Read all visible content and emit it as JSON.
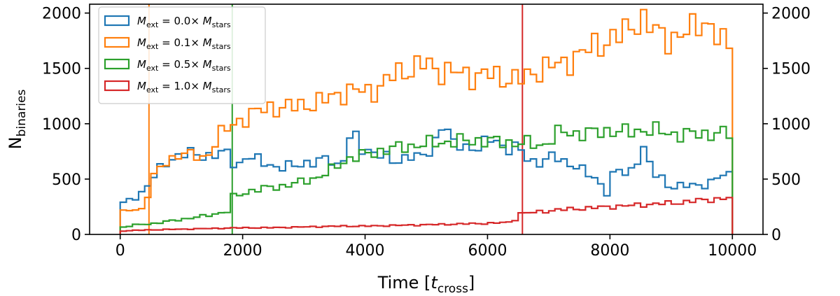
{
  "chart_data": {
    "type": "step-histogram",
    "xlabel": "Time [t_cross]",
    "ylabel": "N_binaries",
    "xlim": [
      -500,
      10500
    ],
    "ylim": [
      0,
      2080
    ],
    "x_ticks": [
      0,
      2000,
      4000,
      6000,
      8000,
      10000
    ],
    "x_tick_labels": [
      "0",
      "2000",
      "4000",
      "6000",
      "8000",
      "10000"
    ],
    "y_ticks": [
      0,
      500,
      1000,
      1500,
      2000
    ],
    "y_tick_labels": [
      "0",
      "500",
      "1000",
      "1500",
      "2000"
    ],
    "right_axis_ticks": true,
    "legend_position": "upper-left",
    "bin_edges_range": [
      0,
      10000
    ],
    "bin_width": 100,
    "vertical_lines": [
      {
        "x": 470,
        "color": "#ff7f0e"
      },
      {
        "x": 1830,
        "color": "#2ca02c"
      },
      {
        "x": 6570,
        "color": "#d62728"
      }
    ],
    "series": [
      {
        "name": "M_ext = 0.0× M_stars",
        "label_parts": [
          "M",
          "ext",
          " = 0.0× ",
          "M",
          "stars"
        ],
        "color": "#1f77b4",
        "anchors": [
          [
            0,
            270
          ],
          [
            200,
            320
          ],
          [
            400,
            400
          ],
          [
            600,
            560
          ],
          [
            800,
            680
          ],
          [
            1000,
            720
          ],
          [
            1200,
            730
          ],
          [
            1400,
            710
          ],
          [
            1600,
            720
          ],
          [
            1800,
            740
          ],
          [
            1900,
            570
          ],
          [
            2000,
            700
          ],
          [
            2200,
            680
          ],
          [
            2400,
            650
          ],
          [
            2600,
            590
          ],
          [
            2800,
            620
          ],
          [
            3000,
            650
          ],
          [
            3200,
            640
          ],
          [
            3400,
            700
          ],
          [
            3600,
            600
          ],
          [
            3800,
            950
          ],
          [
            3900,
            780
          ],
          [
            4100,
            760
          ],
          [
            4300,
            700
          ],
          [
            4500,
            650
          ],
          [
            4700,
            720
          ],
          [
            4900,
            680
          ],
          [
            5100,
            780
          ],
          [
            5300,
            1060
          ],
          [
            5400,
            800
          ],
          [
            5600,
            820
          ],
          [
            5800,
            760
          ],
          [
            6000,
            830
          ],
          [
            6100,
            900
          ],
          [
            6300,
            760
          ],
          [
            6500,
            780
          ],
          [
            6700,
            670
          ],
          [
            6900,
            640
          ],
          [
            7100,
            720
          ],
          [
            7300,
            650
          ],
          [
            7600,
            560
          ],
          [
            7800,
            500
          ],
          [
            7950,
            370
          ],
          [
            8100,
            600
          ],
          [
            8300,
            540
          ],
          [
            8450,
            680
          ],
          [
            8550,
            760
          ],
          [
            8700,
            560
          ],
          [
            8850,
            520
          ],
          [
            9000,
            410
          ],
          [
            9200,
            440
          ],
          [
            9400,
            460
          ],
          [
            9600,
            430
          ],
          [
            9800,
            540
          ],
          [
            10000,
            560
          ]
        ]
      },
      {
        "name": "M_ext = 0.1× M_stars",
        "label_parts": [
          "M",
          "ext",
          " = 0.1× ",
          "M",
          "stars"
        ],
        "color": "#ff7f0e",
        "anchors": [
          [
            0,
            200
          ],
          [
            200,
            220
          ],
          [
            400,
            230
          ],
          [
            500,
            500
          ],
          [
            700,
            620
          ],
          [
            900,
            700
          ],
          [
            1000,
            760
          ],
          [
            1200,
            700
          ],
          [
            1400,
            680
          ],
          [
            1600,
            900
          ],
          [
            1800,
            960
          ],
          [
            2000,
            1050
          ],
          [
            2200,
            1100
          ],
          [
            2500,
            1150
          ],
          [
            2800,
            1150
          ],
          [
            3000,
            1170
          ],
          [
            3300,
            1200
          ],
          [
            3600,
            1280
          ],
          [
            3900,
            1300
          ],
          [
            4100,
            1290
          ],
          [
            4300,
            1350
          ],
          [
            4500,
            1460
          ],
          [
            4800,
            1500
          ],
          [
            5000,
            1550
          ],
          [
            5200,
            1480
          ],
          [
            5400,
            1470
          ],
          [
            5600,
            1450
          ],
          [
            5800,
            1430
          ],
          [
            6000,
            1450
          ],
          [
            6200,
            1420
          ],
          [
            6400,
            1410
          ],
          [
            6600,
            1400
          ],
          [
            6800,
            1480
          ],
          [
            7000,
            1530
          ],
          [
            7200,
            1520
          ],
          [
            7400,
            1600
          ],
          [
            7600,
            1650
          ],
          [
            7800,
            1720
          ],
          [
            8000,
            1760
          ],
          [
            8200,
            1800
          ],
          [
            8400,
            1920
          ],
          [
            8500,
            1960
          ],
          [
            8700,
            1840
          ],
          [
            8900,
            1800
          ],
          [
            9100,
            1760
          ],
          [
            9300,
            1830
          ],
          [
            9500,
            1980
          ],
          [
            9600,
            1880
          ],
          [
            9800,
            1730
          ],
          [
            10000,
            1740
          ]
        ]
      },
      {
        "name": "M_ext = 0.5× M_stars",
        "label_parts": [
          "M",
          "ext",
          " = 0.5× ",
          "M",
          "stars"
        ],
        "color": "#2ca02c",
        "anchors": [
          [
            0,
            60
          ],
          [
            300,
            90
          ],
          [
            600,
            100
          ],
          [
            900,
            130
          ],
          [
            1200,
            150
          ],
          [
            1500,
            180
          ],
          [
            1800,
            210
          ],
          [
            1850,
            340
          ],
          [
            2100,
            390
          ],
          [
            2400,
            420
          ],
          [
            2700,
            440
          ],
          [
            3000,
            480
          ],
          [
            3300,
            530
          ],
          [
            3500,
            600
          ],
          [
            3700,
            680
          ],
          [
            4000,
            720
          ],
          [
            4300,
            760
          ],
          [
            4600,
            790
          ],
          [
            4900,
            810
          ],
          [
            5200,
            830
          ],
          [
            5500,
            840
          ],
          [
            5800,
            850
          ],
          [
            6100,
            840
          ],
          [
            6400,
            830
          ],
          [
            6700,
            820
          ],
          [
            6900,
            800
          ],
          [
            7200,
            930
          ],
          [
            7500,
            910
          ],
          [
            7800,
            920
          ],
          [
            8000,
            940
          ],
          [
            8300,
            920
          ],
          [
            8600,
            950
          ],
          [
            8900,
            920
          ],
          [
            9200,
            900
          ],
          [
            9500,
            910
          ],
          [
            10000,
            910
          ]
        ]
      },
      {
        "name": "M_ext = 1.0× M_stars",
        "label_parts": [
          "M",
          "ext",
          " = 1.0× ",
          "M",
          "stars"
        ],
        "color": "#d62728",
        "anchors": [
          [
            0,
            30
          ],
          [
            400,
            40
          ],
          [
            800,
            45
          ],
          [
            1200,
            50
          ],
          [
            1600,
            55
          ],
          [
            2000,
            60
          ],
          [
            2400,
            60
          ],
          [
            2800,
            65
          ],
          [
            3200,
            70
          ],
          [
            3600,
            75
          ],
          [
            4000,
            75
          ],
          [
            4400,
            80
          ],
          [
            4800,
            85
          ],
          [
            5200,
            90
          ],
          [
            5600,
            95
          ],
          [
            6000,
            100
          ],
          [
            6400,
            110
          ],
          [
            6550,
            190
          ],
          [
            6800,
            200
          ],
          [
            7100,
            220
          ],
          [
            7400,
            230
          ],
          [
            7700,
            240
          ],
          [
            8000,
            250
          ],
          [
            8300,
            260
          ],
          [
            8600,
            270
          ],
          [
            8900,
            280
          ],
          [
            9200,
            290
          ],
          [
            9500,
            310
          ],
          [
            9800,
            320
          ],
          [
            10000,
            330
          ]
        ]
      }
    ]
  }
}
